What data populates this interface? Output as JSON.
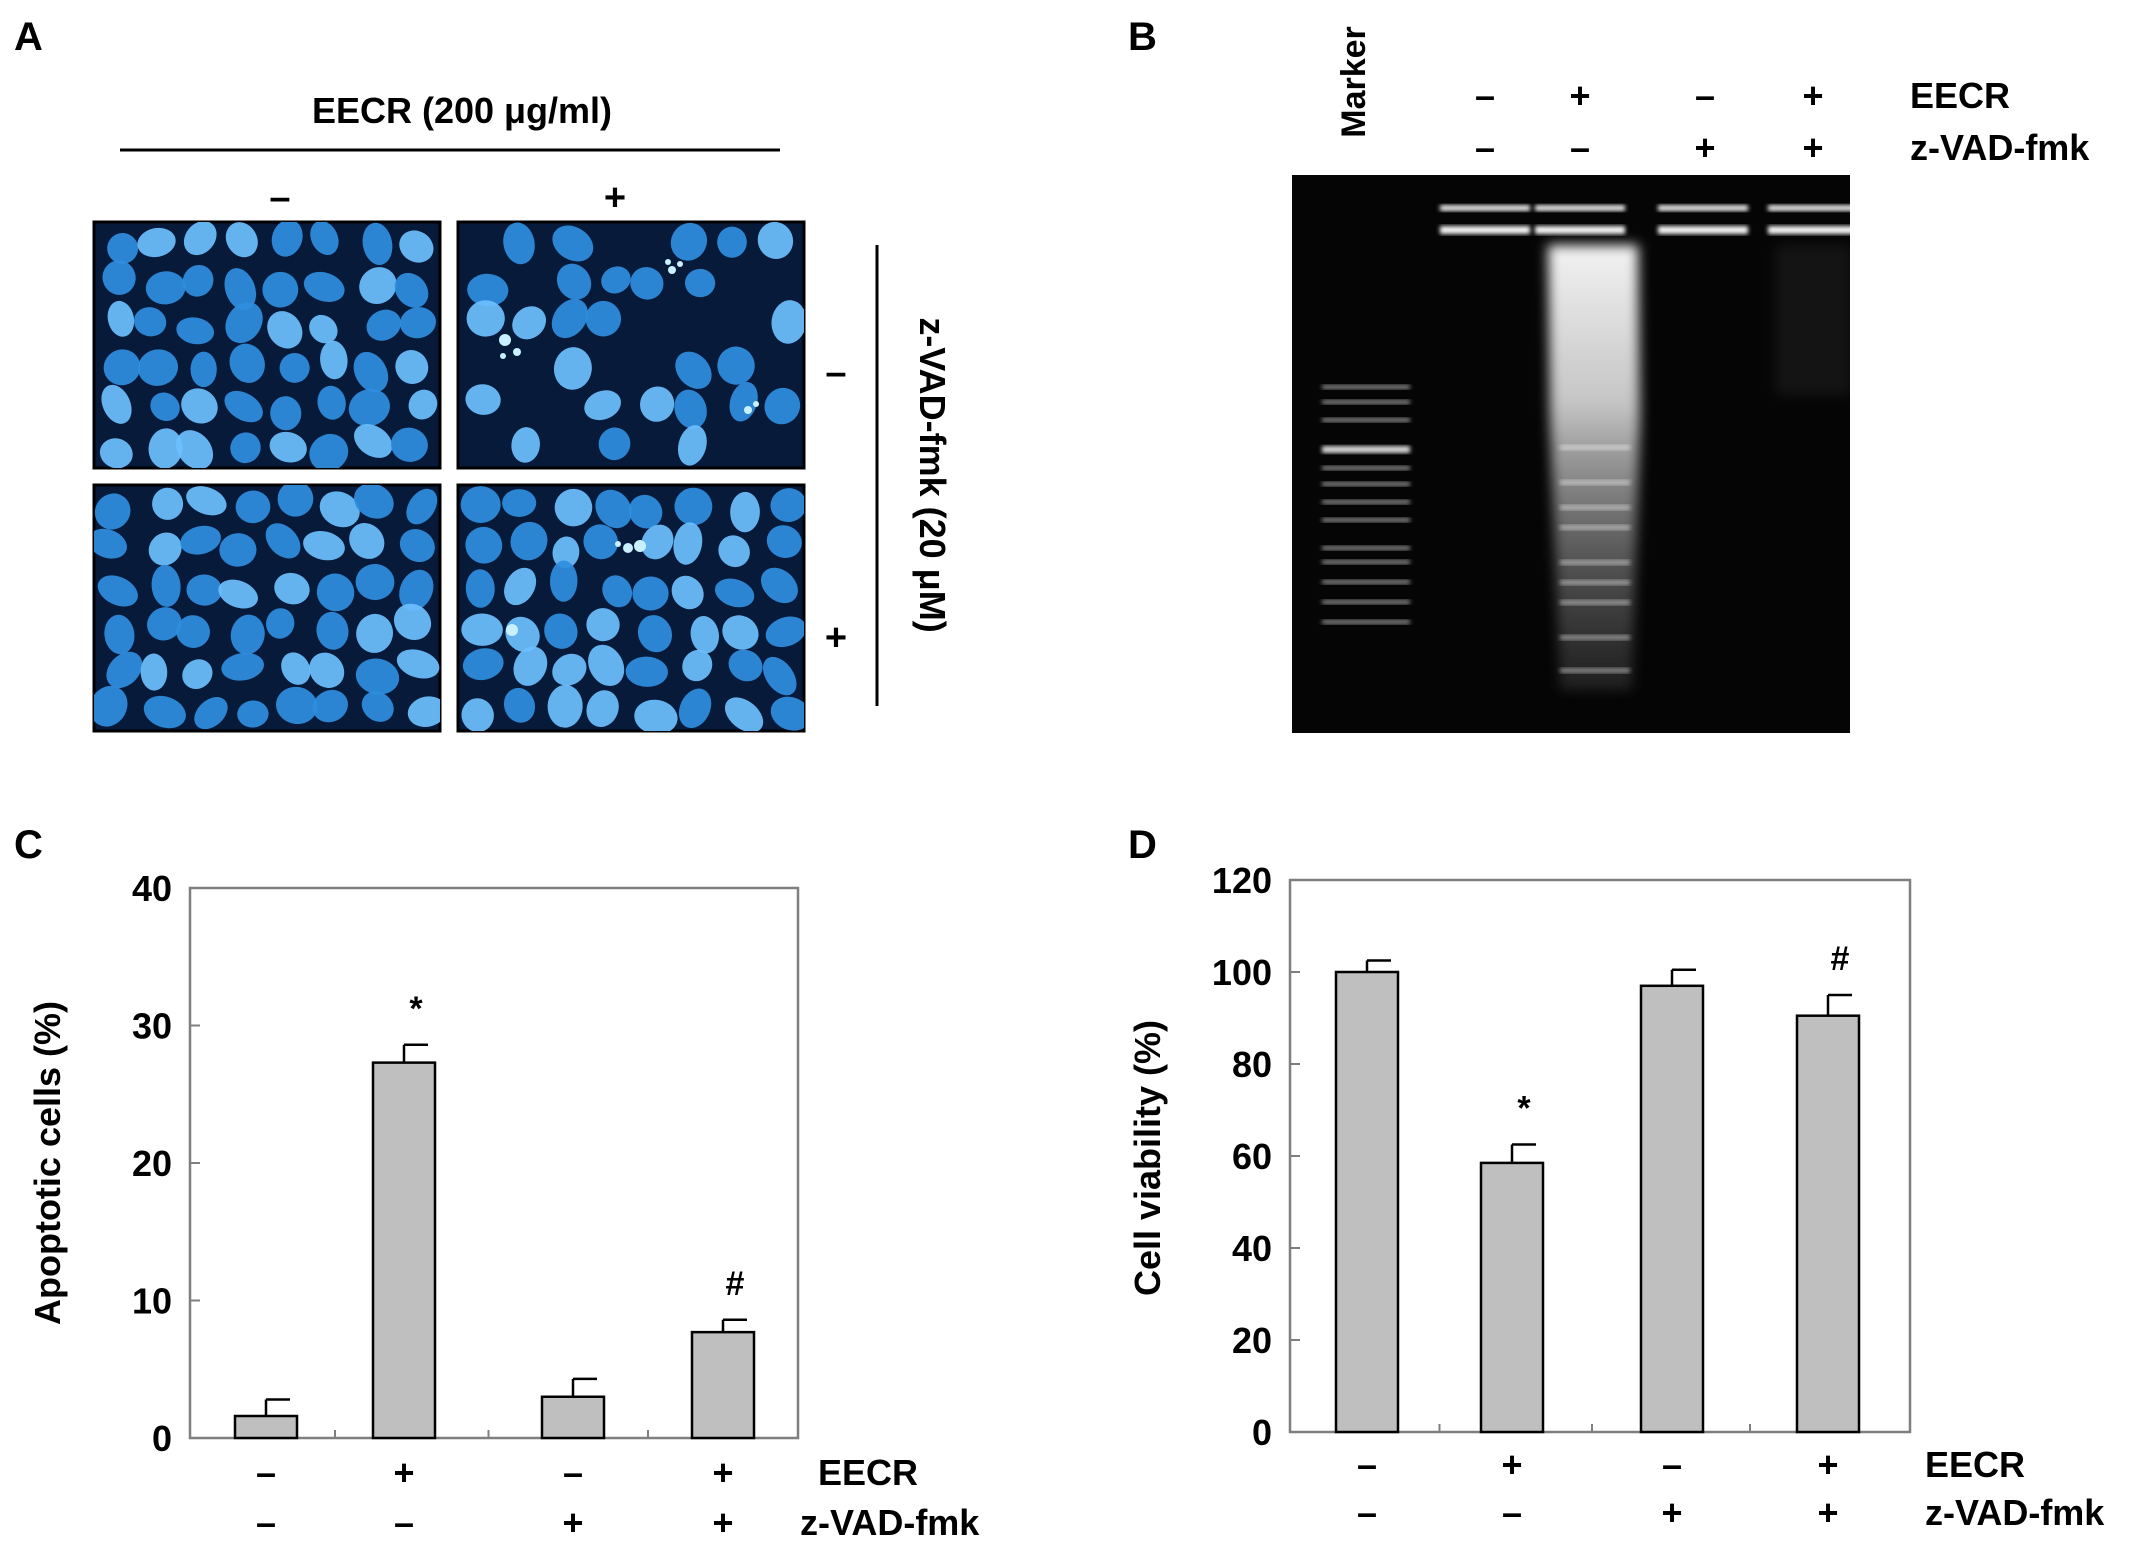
{
  "panel_a": {
    "letter": "A",
    "treatment_label": "EECR (200 μg/ml)",
    "col_signs": [
      "–",
      "+"
    ],
    "row_signs": [
      "–",
      "+"
    ],
    "side_label": "z-VAD-fmk (20 μM)",
    "colors": {
      "background": "#071a3a",
      "nucleus": "#2f8ee0",
      "nucleus_light": "#6cc0ff"
    }
  },
  "panel_b": {
    "letter": "B",
    "marker_label": "Marker",
    "row_labels": [
      "EECR",
      "z-VAD-fmk"
    ],
    "eecr_signs": [
      "–",
      "+",
      "–",
      "+"
    ],
    "zvad_signs": [
      "–",
      "–",
      "+",
      "+"
    ]
  },
  "chart_data": [
    {
      "panel": "C",
      "type": "bar",
      "ylabel": "Apoptotic cells (%)",
      "ylim": [
        0,
        40
      ],
      "yticks": [
        "0",
        "10",
        "20",
        "30",
        "40"
      ],
      "values": [
        1.6,
        27.3,
        3.0,
        7.7
      ],
      "errors": [
        1.2,
        1.3,
        1.3,
        0.9
      ],
      "annotations": [
        "",
        "*",
        "",
        "#"
      ],
      "row_labels": [
        "EECR",
        "z-VAD-fmk"
      ],
      "eecr_signs": [
        "–",
        "+",
        "–",
        "+"
      ],
      "zvad_signs": [
        "–",
        "–",
        "+",
        "+"
      ],
      "bar_color": "#bfbfbf"
    },
    {
      "panel": "D",
      "type": "bar",
      "ylabel": "Cell viability (%)",
      "ylim": [
        0,
        120
      ],
      "yticks": [
        "0",
        "20",
        "40",
        "60",
        "80",
        "100",
        "120"
      ],
      "values": [
        100,
        58.5,
        97,
        90.5
      ],
      "errors": [
        2.5,
        4,
        3.5,
        4.5
      ],
      "annotations": [
        "",
        "*",
        "",
        "#"
      ],
      "row_labels": [
        "EECR",
        "z-VAD-fmk"
      ],
      "eecr_signs": [
        "–",
        "+",
        "–",
        "+"
      ],
      "zvad_signs": [
        "–",
        "–",
        "+",
        "+"
      ],
      "bar_color": "#bfbfbf"
    }
  ]
}
